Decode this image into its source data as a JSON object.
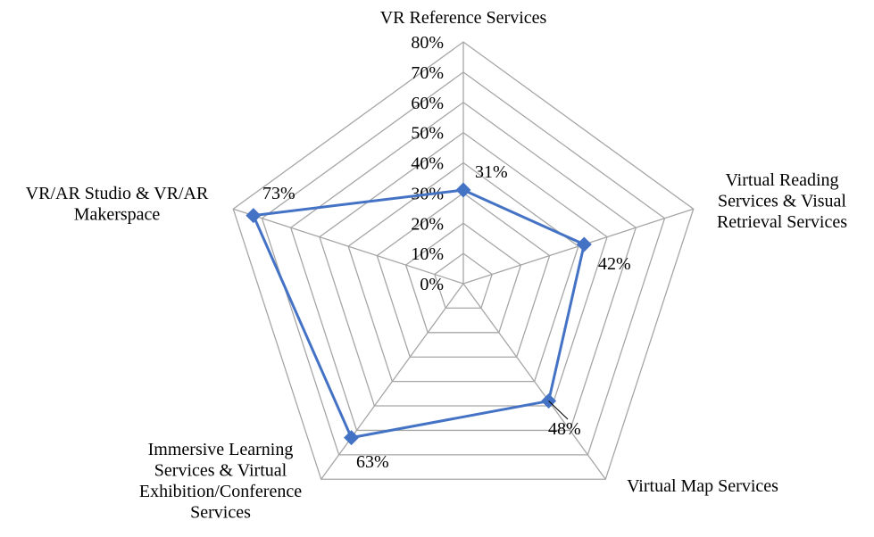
{
  "chart_data": {
    "type": "radar",
    "title": "",
    "categories": [
      [
        "VR Reference Services"
      ],
      [
        "Virtual Reading",
        "Services & Visual",
        "Retrieval Services"
      ],
      [
        "Virtual Map Services"
      ],
      [
        "Immersive Learning",
        "Services & Virtual",
        "Exhibition/Conference",
        "Services"
      ],
      [
        "VR/AR Studio & VR/AR",
        "Makerspace"
      ]
    ],
    "values": [
      31,
      42,
      48,
      63,
      73
    ],
    "data_labels": [
      "31%",
      "42%",
      "48%",
      "63%",
      "73%"
    ],
    "rlim": [
      0,
      80
    ],
    "tick_labels": [
      "0%",
      "10%",
      "20%",
      "30%",
      "40%",
      "50%",
      "60%",
      "70%",
      "80%"
    ],
    "grid": true,
    "legend": "none",
    "colors": {
      "series": "#4472C4",
      "grid": "#A6A6A6"
    }
  }
}
